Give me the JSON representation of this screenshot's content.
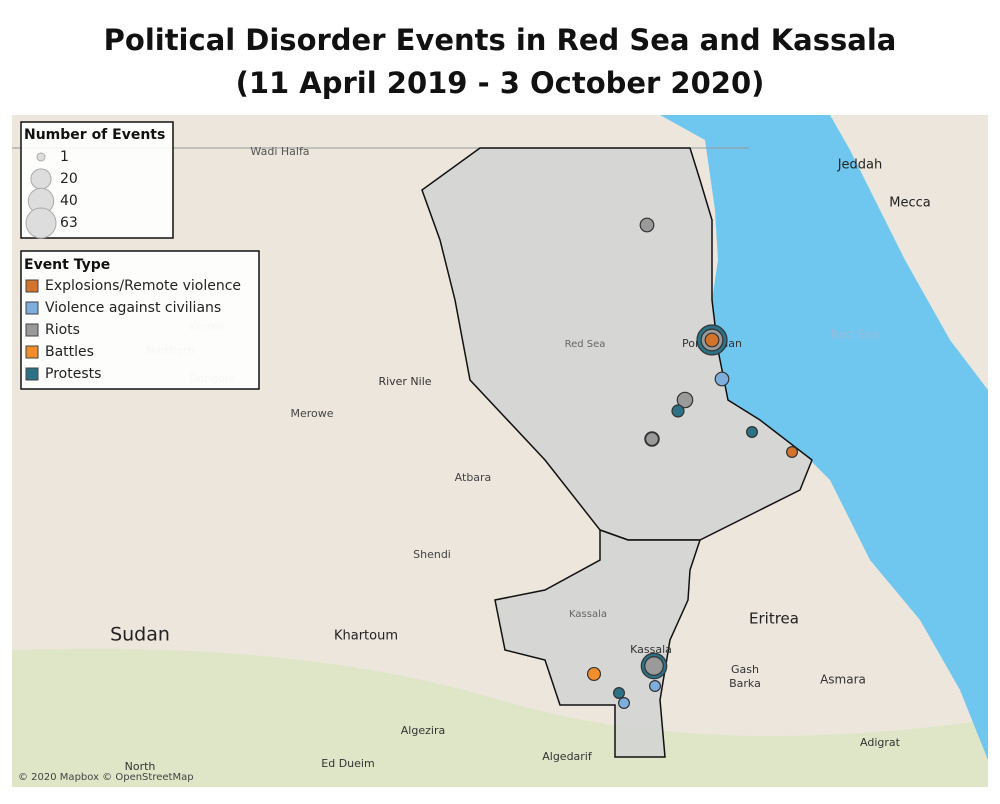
{
  "title": "Political Disorder Events in Red Sea and Kassala",
  "subtitle": "(11 April 2019 - 3 October 2020)",
  "size_legend": {
    "title": "Number of Events",
    "values": [
      1,
      20,
      40,
      63
    ]
  },
  "type_legend": {
    "title": "Event Type",
    "items": [
      {
        "name": "Explosions/Remote violence",
        "color": "#d4742c"
      },
      {
        "name": "Violence against civilians",
        "color": "#7eaedb"
      },
      {
        "name": "Riots",
        "color": "#9a9a9a"
      },
      {
        "name": "Battles",
        "color": "#f28e2b"
      },
      {
        "name": "Protests",
        "color": "#2c7185"
      }
    ]
  },
  "events": [
    {
      "type": "Riots",
      "count": 5
    },
    {
      "type": "Protests",
      "count": 63
    },
    {
      "type": "Riots",
      "count": 25
    },
    {
      "type": "Explosions/Remote violence",
      "count": 5
    },
    {
      "type": "Violence against civilians",
      "count": 5
    },
    {
      "type": "Riots",
      "count": 8
    },
    {
      "type": "Protests",
      "count": 3
    },
    {
      "type": "Protests",
      "count": 6
    },
    {
      "type": "Riots",
      "count": 4
    },
    {
      "type": "Protests",
      "count": 2
    },
    {
      "type": "Explosions/Remote violence",
      "count": 2
    },
    {
      "type": "Protests",
      "count": 40
    },
    {
      "type": "Riots",
      "count": 15
    },
    {
      "type": "Violence against civilians",
      "count": 2
    },
    {
      "type": "Battles",
      "count": 4
    },
    {
      "type": "Protests",
      "count": 2
    },
    {
      "type": "Violence against civilians",
      "count": 2
    }
  ],
  "places": [
    "Wadi Halfa",
    "Jeddah",
    "Mecca",
    "Red Sea",
    "Kerma",
    "Northern",
    "Dongola",
    "River Nile",
    "Red Sea",
    "Port Sudan",
    "Merowe",
    "Atbara",
    "Shendi",
    "Sudan",
    "Khartoum",
    "Kassala",
    "Kassala",
    "Eritrea",
    "Gash",
    "Barka",
    "Asmara",
    "Algezira",
    "Algedarif",
    "Ed Dueim",
    "North",
    "Adigrat"
  ],
  "attribution": "© 2020 Mapbox © OpenStreetMap"
}
